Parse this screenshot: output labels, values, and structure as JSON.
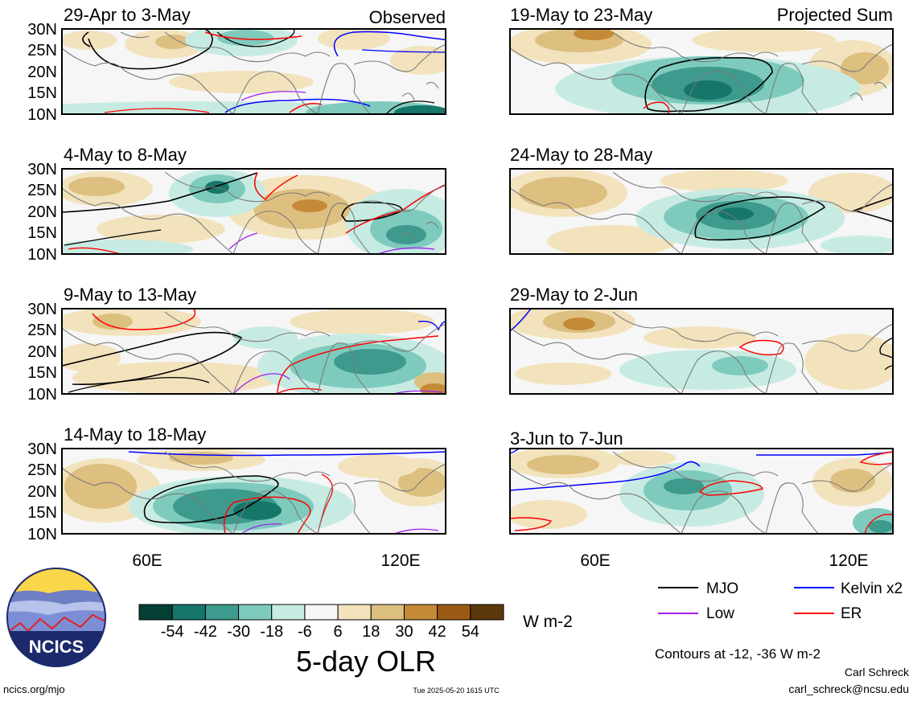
{
  "panels": [
    {
      "title": "29-Apr to 3-May",
      "tag": "Observed"
    },
    {
      "title": "19-May to 23-May",
      "tag": "Projected Sum"
    },
    {
      "title": "4-May to 8-May",
      "tag": ""
    },
    {
      "title": "24-May to 28-May",
      "tag": ""
    },
    {
      "title": "9-May to 13-May",
      "tag": ""
    },
    {
      "title": "29-May to 2-Jun",
      "tag": ""
    },
    {
      "title": "14-May to 18-May",
      "tag": ""
    },
    {
      "title": "3-Jun to 7-Jun",
      "tag": ""
    }
  ],
  "lat_ticks": [
    "30N",
    "25N",
    "20N",
    "15N",
    "10N"
  ],
  "lon_ticks": [
    "60E",
    "120E"
  ],
  "colorbar": {
    "colors": [
      "#033f32",
      "#16766a",
      "#3e9a8d",
      "#7ecbbd",
      "#c7ebe3",
      "#f6f6f6",
      "#f2e3bd",
      "#ddbf80",
      "#c58a38",
      "#9a5a16",
      "#5b380b"
    ],
    "labels": [
      "-54",
      "-42",
      "-30",
      "-18",
      "-6",
      "6",
      "18",
      "30",
      "42",
      "54"
    ],
    "units": "W m-2",
    "title": "5-day OLR"
  },
  "legend": [
    {
      "label": "MJO",
      "color": "#000000"
    },
    {
      "label": "Kelvin x2",
      "color": "#0000ff"
    },
    {
      "label": "Low",
      "color": "#a020f0"
    },
    {
      "label": "ER",
      "color": "#ff0000"
    }
  ],
  "contours_note": "Contours at -12, -36 W m-2",
  "footer": {
    "site": "ncics.org/mjo",
    "timestamp": "Tue 2025-05-20 1615 UTC",
    "author": "Carl Schreck",
    "email": "carl_schreck@ncsu.edu"
  },
  "logo": {
    "text": "NCICS"
  }
}
